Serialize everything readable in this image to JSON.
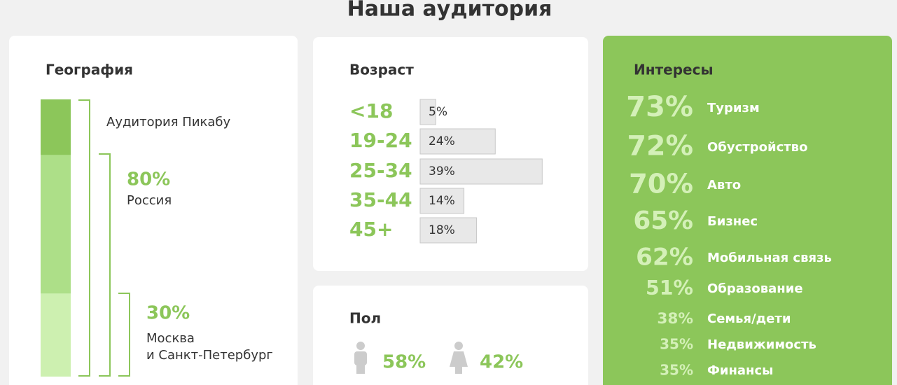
{
  "header": {
    "title": "Наша аудитория"
  },
  "geography": {
    "title": "География",
    "audience_label": "Аудитория Пикабу",
    "values": [
      80,
      30
    ],
    "value_labels": [
      "80%",
      "30%"
    ],
    "labels": [
      [
        "Россия"
      ],
      [
        "Москва",
        "и Санкт-Петербург"
      ]
    ]
  },
  "age": {
    "title": "Возраст",
    "categories": [
      "<18",
      "19-24",
      "25-34",
      "35-44",
      "45+"
    ],
    "values": [
      5,
      24,
      39,
      14,
      18
    ],
    "value_labels": [
      "5%",
      "24%",
      "39%",
      "14%",
      "18%"
    ]
  },
  "gender": {
    "title": "Пол",
    "values": [
      58,
      42
    ],
    "value_labels": [
      "58%",
      "42%"
    ]
  },
  "interests": {
    "title": "Интересы",
    "categories": [
      "Туризм",
      "Обустройство",
      "Авто",
      "Бизнес",
      "Мобильная связь",
      "Образование",
      "Семья/дети",
      "Недвижимость",
      "Финансы"
    ],
    "values": [
      73,
      72,
      70,
      65,
      62,
      51,
      38,
      35,
      35
    ],
    "value_labels": [
      "73%",
      "72%",
      "70%",
      "65%",
      "62%",
      "51%",
      "38%",
      "35%",
      "35%"
    ]
  }
}
